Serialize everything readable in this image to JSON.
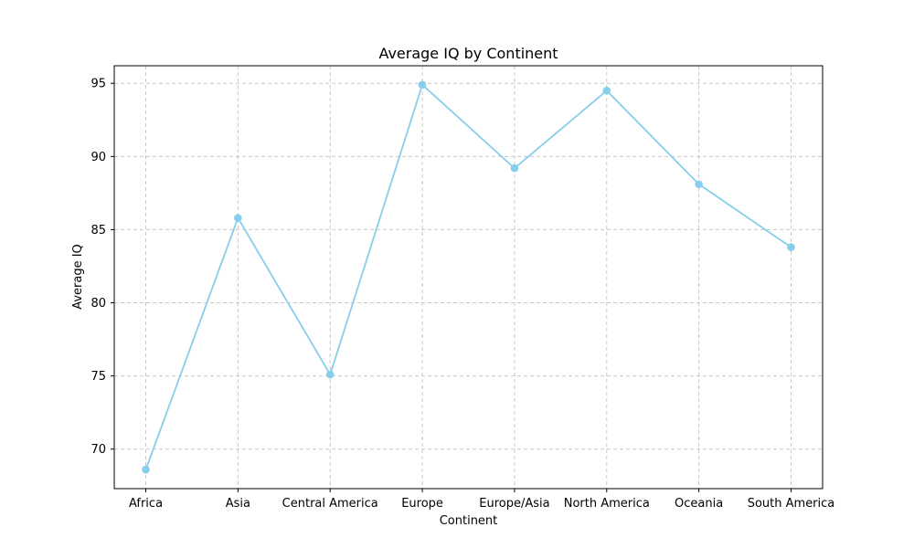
{
  "chart_data": {
    "type": "line",
    "title": "Average IQ by Continent",
    "xlabel": "Continent",
    "ylabel": "Average IQ",
    "categories": [
      "Africa",
      "Asia",
      "Central America",
      "Europe",
      "Europe/Asia",
      "North America",
      "Oceania",
      "South America"
    ],
    "series": [
      {
        "values": [
          68.6,
          85.8,
          75.1,
          94.9,
          89.2,
          94.5,
          88.1,
          83.8
        ]
      }
    ],
    "ylim": [
      67.3,
      96.2
    ],
    "yticks": [
      70,
      75,
      80,
      85,
      90,
      95
    ],
    "grid": true,
    "line_color": "#87CEEB",
    "marker": "circle"
  }
}
